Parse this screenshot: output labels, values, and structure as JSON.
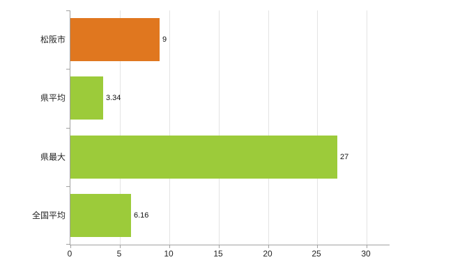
{
  "chart_data": {
    "type": "bar",
    "orientation": "horizontal",
    "title": "",
    "xlabel": "",
    "ylabel": "",
    "categories": [
      "松阪市",
      "県平均",
      "県最大",
      "全国平均"
    ],
    "values": [
      9,
      3.34,
      27,
      6.16
    ],
    "value_labels": [
      "9",
      "3.34",
      "27",
      "6.16"
    ],
    "bar_colors": [
      "#e0771f",
      "#9ccb3a",
      "#9ccb3a",
      "#9ccb3a"
    ],
    "x_ticks": [
      0,
      5,
      10,
      15,
      20,
      25,
      30
    ],
    "x_tick_labels": [
      "0",
      "5",
      "10",
      "15",
      "20",
      "25",
      "30"
    ],
    "xlim": [
      0,
      32.3
    ],
    "grid": "vertical",
    "legend": "none",
    "axis_color": "#a0a0a0",
    "grid_color": "#e3e3e3",
    "text_color": "#222222"
  }
}
